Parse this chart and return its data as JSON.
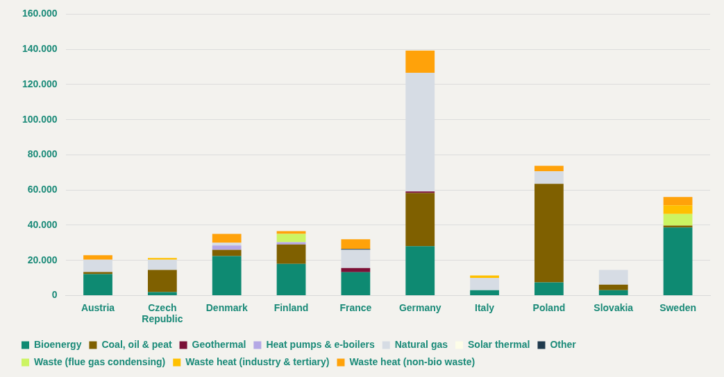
{
  "chart_data": {
    "type": "bar",
    "stacked": true,
    "legend": "bottom",
    "grid": "y",
    "categories": [
      "Austria",
      "Czech Republic",
      "Denmark",
      "Finland",
      "France",
      "Germany",
      "Italy",
      "Poland",
      "Slovakia",
      "Sweden"
    ],
    "ylim": [
      0,
      160000
    ],
    "yticks": [
      {
        "value": 0,
        "label": "0"
      },
      {
        "value": 20000,
        "label": "20.000"
      },
      {
        "value": 40000,
        "label": "40.000"
      },
      {
        "value": 60000,
        "label": "60.000"
      },
      {
        "value": 80000,
        "label": "80.000"
      },
      {
        "value": 100000,
        "label": "100.000"
      },
      {
        "value": 120000,
        "label": "120.000"
      },
      {
        "value": 140000,
        "label": "140.000"
      },
      {
        "value": 160000,
        "label": "160.000"
      }
    ],
    "series": [
      {
        "name": "Bioenergy",
        "color": "#0e8a72",
        "values": [
          12200,
          1900,
          22400,
          18000,
          13300,
          28000,
          3000,
          7400,
          3000,
          38700
        ]
      },
      {
        "name": "Coal, oil & peat",
        "color": "#7f6000",
        "values": [
          1200,
          12600,
          3600,
          11000,
          0,
          30300,
          0,
          56100,
          3200,
          1100
        ]
      },
      {
        "name": "Geothermal",
        "color": "#7b1037",
        "values": [
          0,
          0,
          0,
          0,
          2300,
          900,
          0,
          0,
          0,
          0
        ]
      },
      {
        "name": "Heat pumps & e-boilers",
        "color": "#b4a7e5",
        "values": [
          0,
          0,
          2400,
          1300,
          0,
          0,
          0,
          0,
          0,
          0
        ]
      },
      {
        "name": "Natural gas",
        "color": "#d6dce4",
        "values": [
          7000,
          5900,
          1600,
          null,
          10400,
          67500,
          7000,
          7100,
          8300,
          0
        ]
      },
      {
        "name": "Solar thermal",
        "color": "#fdfde8",
        "values": [
          0,
          0,
          null,
          0,
          0,
          0,
          0,
          0,
          0,
          0
        ]
      },
      {
        "name": "Other",
        "color": "#1f3a4d",
        "values": [
          0,
          0,
          0,
          0,
          500,
          0,
          0,
          0,
          0,
          0
        ]
      },
      {
        "name": "Waste (flue gas condensing)",
        "color": "#ccf462",
        "values": [
          0,
          0,
          0,
          4700,
          0,
          0,
          0,
          0,
          0,
          6600
        ]
      },
      {
        "name": "Waste heat (industry & tertiary)",
        "color": "#ffc000",
        "values": [
          0,
          900,
          0,
          0,
          0,
          0,
          1400,
          0,
          0,
          4900
        ]
      },
      {
        "name": "Waste heat (non-bio waste)",
        "color": "#ffa20a",
        "values": [
          2500,
          0,
          5000,
          1600,
          5500,
          12600,
          0,
          3200,
          0,
          4700
        ]
      }
    ]
  }
}
